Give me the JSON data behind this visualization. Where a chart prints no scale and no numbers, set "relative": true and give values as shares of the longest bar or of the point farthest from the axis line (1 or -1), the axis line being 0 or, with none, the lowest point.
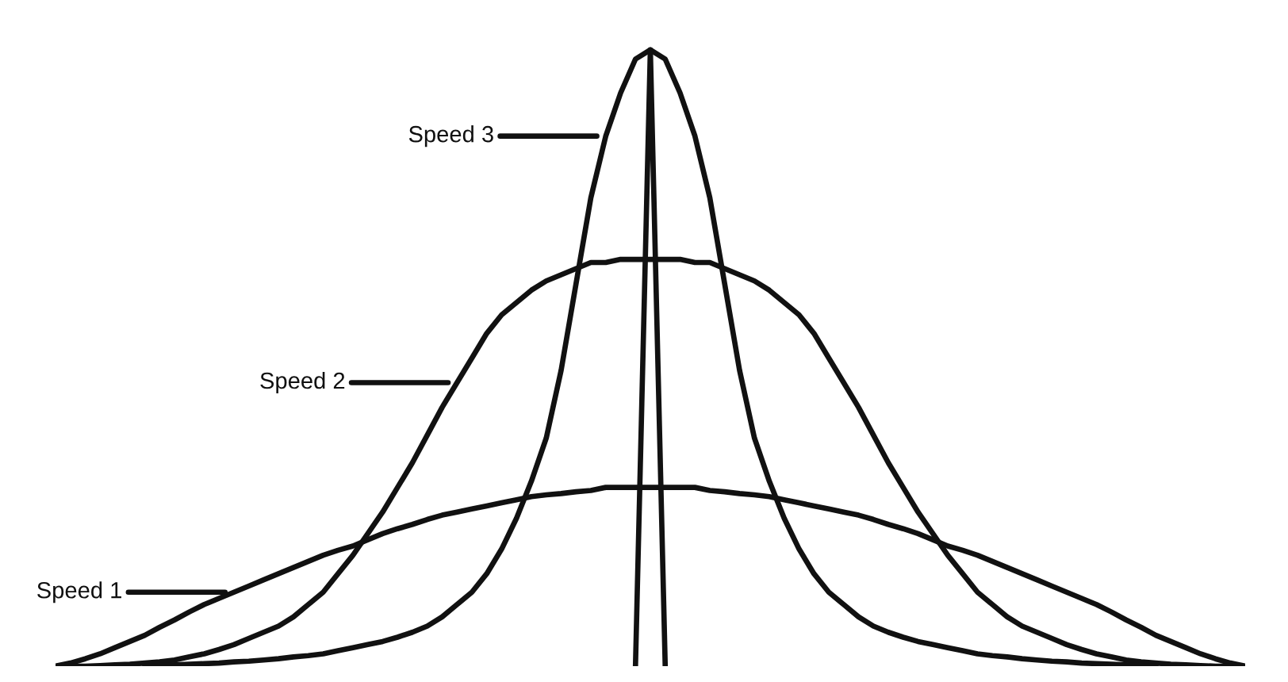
{
  "chart_data": {
    "type": "line",
    "relative": true,
    "legend": "left",
    "categories": [
      null,
      null,
      null,
      null,
      null,
      null,
      null,
      null,
      null,
      null,
      null,
      null,
      null,
      null,
      null,
      null,
      null,
      null,
      null,
      null,
      null,
      null,
      null,
      null,
      null,
      null,
      null,
      null,
      null,
      null,
      null,
      null,
      null,
      null,
      null,
      null,
      null,
      null,
      null,
      null,
      null,
      null,
      null,
      null,
      null,
      null,
      null,
      null,
      null,
      null,
      null,
      null,
      null,
      null,
      null,
      null,
      null,
      null,
      null,
      null,
      null,
      null,
      null,
      null,
      null,
      null,
      null,
      null,
      null,
      null,
      null,
      null,
      null,
      null,
      null,
      null,
      null,
      null,
      null,
      null,
      null
    ],
    "series": [
      {
        "name": "Speed 1",
        "color": "#111111",
        "values": [
          0,
          0.005,
          0.012,
          0.02,
          0.03,
          0.04,
          0.05,
          0.063,
          0.075,
          0.088,
          0.1,
          0.11,
          0.12,
          0.13,
          0.14,
          0.15,
          0.16,
          0.17,
          0.18,
          0.188,
          0.195,
          0.205,
          0.215,
          0.223,
          0.23,
          0.238,
          0.245,
          0.25,
          0.255,
          0.26,
          0.265,
          0.27,
          0.275,
          0.278,
          0.28,
          0.283,
          0.285,
          0.29,
          0.29,
          0.29,
          0.29,
          0.29,
          0.29,
          0.29,
          0.285,
          0.283,
          0.28,
          0.278,
          0.275,
          0.27,
          0.265,
          0.26,
          0.255,
          0.25,
          0.245,
          0.238,
          0.23,
          0.223,
          0.215,
          0.205,
          0.195,
          0.188,
          0.18,
          0.17,
          0.16,
          0.15,
          0.14,
          0.13,
          0.12,
          0.11,
          0.1,
          0.088,
          0.075,
          0.063,
          0.05,
          0.04,
          0.03,
          0.02,
          0.012,
          0.005,
          0
        ]
      },
      {
        "name": "Speed 2",
        "color": "#111111",
        "values": [
          null,
          0,
          0,
          0.001,
          0.002,
          0.003,
          0.005,
          0.007,
          0.01,
          0.015,
          0.02,
          0.027,
          0.035,
          0.045,
          0.055,
          0.065,
          0.08,
          0.1,
          0.12,
          0.15,
          0.18,
          0.215,
          0.25,
          0.29,
          0.33,
          0.375,
          0.42,
          0.46,
          0.5,
          0.54,
          0.57,
          0.59,
          0.61,
          0.625,
          0.635,
          0.645,
          0.655,
          0.655,
          0.66,
          0.66,
          0.66,
          0.66,
          0.66,
          0.655,
          0.655,
          0.645,
          0.635,
          0.625,
          0.61,
          0.59,
          0.57,
          0.54,
          0.5,
          0.46,
          0.42,
          0.375,
          0.33,
          0.29,
          0.25,
          0.215,
          0.18,
          0.15,
          0.12,
          0.1,
          0.08,
          0.065,
          0.055,
          0.045,
          0.035,
          0.027,
          0.02,
          0.015,
          0.01,
          0.007,
          0.005,
          0.003,
          0.002,
          0.001,
          0,
          0,
          null
        ]
      },
      {
        "name": "Speed 3",
        "color": "#111111",
        "values": [
          null,
          null,
          null,
          null,
          null,
          null,
          0,
          0.001,
          0.002,
          0.003,
          0.004,
          0.005,
          0.007,
          0.008,
          0.01,
          0.012,
          0.015,
          0.017,
          0.02,
          0.025,
          0.03,
          0.035,
          0.04,
          0.047,
          0.055,
          0.065,
          0.08,
          0.1,
          0.12,
          0.15,
          0.19,
          0.24,
          0.3,
          0.37,
          0.48,
          0.62,
          0.76,
          0.86,
          0.93,
          0.985,
          1,
          0.985,
          0.93,
          0.86,
          0.76,
          0.62,
          0.48,
          0.37,
          0.3,
          0.24,
          0.19,
          0.15,
          0.12,
          0.1,
          0.08,
          0.065,
          0.055,
          0.047,
          0.04,
          0.035,
          0.03,
          0.025,
          0.02,
          0.017,
          0.015,
          0.012,
          0.01,
          0.008,
          0.007,
          0.005,
          0.004,
          0.003,
          0.002,
          0.001,
          0,
          null,
          null,
          null,
          null,
          null,
          null
        ]
      },
      {
        "color": "#111111",
        "values": [
          null,
          null,
          null,
          null,
          null,
          null,
          null,
          null,
          null,
          null,
          null,
          null,
          null,
          null,
          null,
          null,
          null,
          null,
          null,
          null,
          null,
          null,
          null,
          null,
          null,
          null,
          null,
          null,
          null,
          null,
          null,
          null,
          null,
          null,
          null,
          null,
          null,
          null,
          null,
          0,
          1,
          0,
          null,
          null,
          null,
          null,
          null,
          null,
          null,
          null,
          null,
          null,
          null,
          null,
          null,
          null,
          null,
          null,
          null,
          null,
          null,
          null,
          null,
          null,
          null,
          null,
          null,
          null,
          null,
          null,
          null,
          null,
          null,
          null,
          null,
          null,
          null,
          null,
          null,
          null,
          null
        ]
      }
    ]
  }
}
